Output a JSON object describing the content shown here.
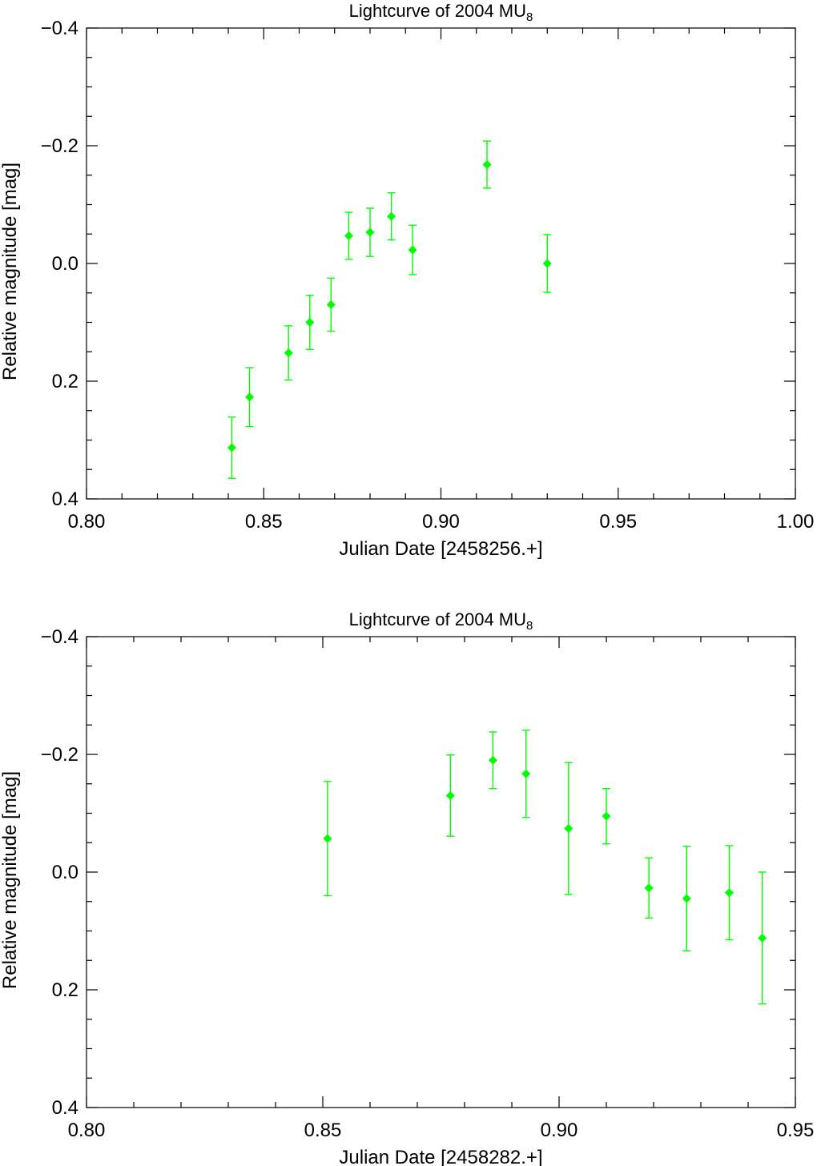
{
  "chart_data": [
    {
      "type": "scatter",
      "title": "Lightcurve of 2004 MU",
      "title_subscript": "8",
      "xlabel": "Julian Date [2458256.+]",
      "ylabel": "Relative magnitude [mag]",
      "xlim": [
        0.8,
        1.0
      ],
      "ylim": [
        0.4,
        -0.4
      ],
      "y_inverted": true,
      "xticks": [
        "0.80",
        "0.85",
        "0.90",
        "0.95",
        "1.00"
      ],
      "yticks": [
        "−0.4",
        "−0.2",
        "0.0",
        "0.2",
        "0.4"
      ],
      "marker": "diamond",
      "color": "#00ff00",
      "grid": false,
      "points": [
        {
          "x": 0.841,
          "y": 0.313,
          "err": 0.052
        },
        {
          "x": 0.846,
          "y": 0.227,
          "err": 0.05
        },
        {
          "x": 0.857,
          "y": 0.152,
          "err": 0.046
        },
        {
          "x": 0.863,
          "y": 0.1,
          "err": 0.046
        },
        {
          "x": 0.869,
          "y": 0.07,
          "err": 0.045
        },
        {
          "x": 0.874,
          "y": -0.047,
          "err": 0.04
        },
        {
          "x": 0.88,
          "y": -0.053,
          "err": 0.041
        },
        {
          "x": 0.886,
          "y": -0.08,
          "err": 0.04
        },
        {
          "x": 0.892,
          "y": -0.023,
          "err": 0.042
        },
        {
          "x": 0.913,
          "y": -0.168,
          "err": 0.04
        },
        {
          "x": 0.93,
          "y": 0.0,
          "err": 0.049
        }
      ]
    },
    {
      "type": "scatter",
      "title": "Lightcurve of 2004 MU",
      "title_subscript": "8",
      "xlabel": "Julian Date [2458282.+]",
      "ylabel": "Relative magnitude [mag]",
      "xlim": [
        0.8,
        0.95
      ],
      "ylim": [
        0.4,
        -0.4
      ],
      "y_inverted": true,
      "xticks": [
        "0.80",
        "0.85",
        "0.90",
        "0.95"
      ],
      "yticks": [
        "−0.4",
        "−0.2",
        "0.0",
        "0.2",
        "0.4"
      ],
      "marker": "diamond",
      "color": "#00ff00",
      "grid": false,
      "points": [
        {
          "x": 0.851,
          "y": -0.057,
          "err": 0.097
        },
        {
          "x": 0.877,
          "y": -0.13,
          "err": 0.069
        },
        {
          "x": 0.886,
          "y": -0.19,
          "err": 0.048
        },
        {
          "x": 0.893,
          "y": -0.167,
          "err": 0.074
        },
        {
          "x": 0.902,
          "y": -0.074,
          "err": 0.112
        },
        {
          "x": 0.91,
          "y": -0.095,
          "err": 0.047
        },
        {
          "x": 0.919,
          "y": 0.027,
          "err": 0.051
        },
        {
          "x": 0.927,
          "y": 0.045,
          "err": 0.089
        },
        {
          "x": 0.936,
          "y": 0.035,
          "err": 0.08
        },
        {
          "x": 0.943,
          "y": 0.112,
          "err": 0.112
        }
      ]
    }
  ]
}
